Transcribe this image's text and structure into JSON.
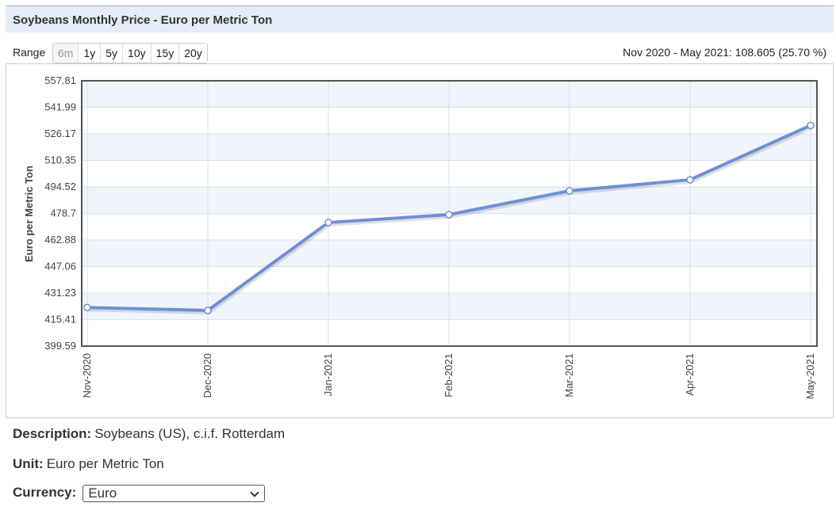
{
  "header": {
    "title": "Soybeans Monthly Price - Euro per Metric Ton"
  },
  "range": {
    "label": "Range",
    "buttons": [
      "6m",
      "1y",
      "5y",
      "10y",
      "15y",
      "20y"
    ]
  },
  "summary": "Nov 2020 - May 2021: 108.605 (25.70 %)",
  "chart_data": {
    "type": "line",
    "y_label": "Euro per Metric Ton",
    "categories": [
      "Nov-2020",
      "Dec-2020",
      "Jan-2021",
      "Feb-2021",
      "Mar-2021",
      "Apr-2021",
      "May-2021"
    ],
    "series": [
      {
        "name": "Soybeans",
        "color": "#6f8fd6",
        "values": [
          422.6,
          420.9,
          473.3,
          478.0,
          492.2,
          498.8,
          531.2
        ]
      }
    ],
    "ylim": [
      399.59,
      557.81
    ],
    "yticks": [
      399.59,
      415.41,
      431.23,
      447.06,
      462.88,
      478.7,
      494.52,
      510.35,
      526.17,
      541.99,
      557.81
    ],
    "grid": true
  },
  "details": [
    {
      "label": "Description:",
      "value": "Soybeans (US), c.i.f. Rotterdam"
    },
    {
      "label": "Unit:",
      "value": "Euro per Metric Ton"
    },
    {
      "label": "Currency:",
      "value": "Euro"
    }
  ]
}
